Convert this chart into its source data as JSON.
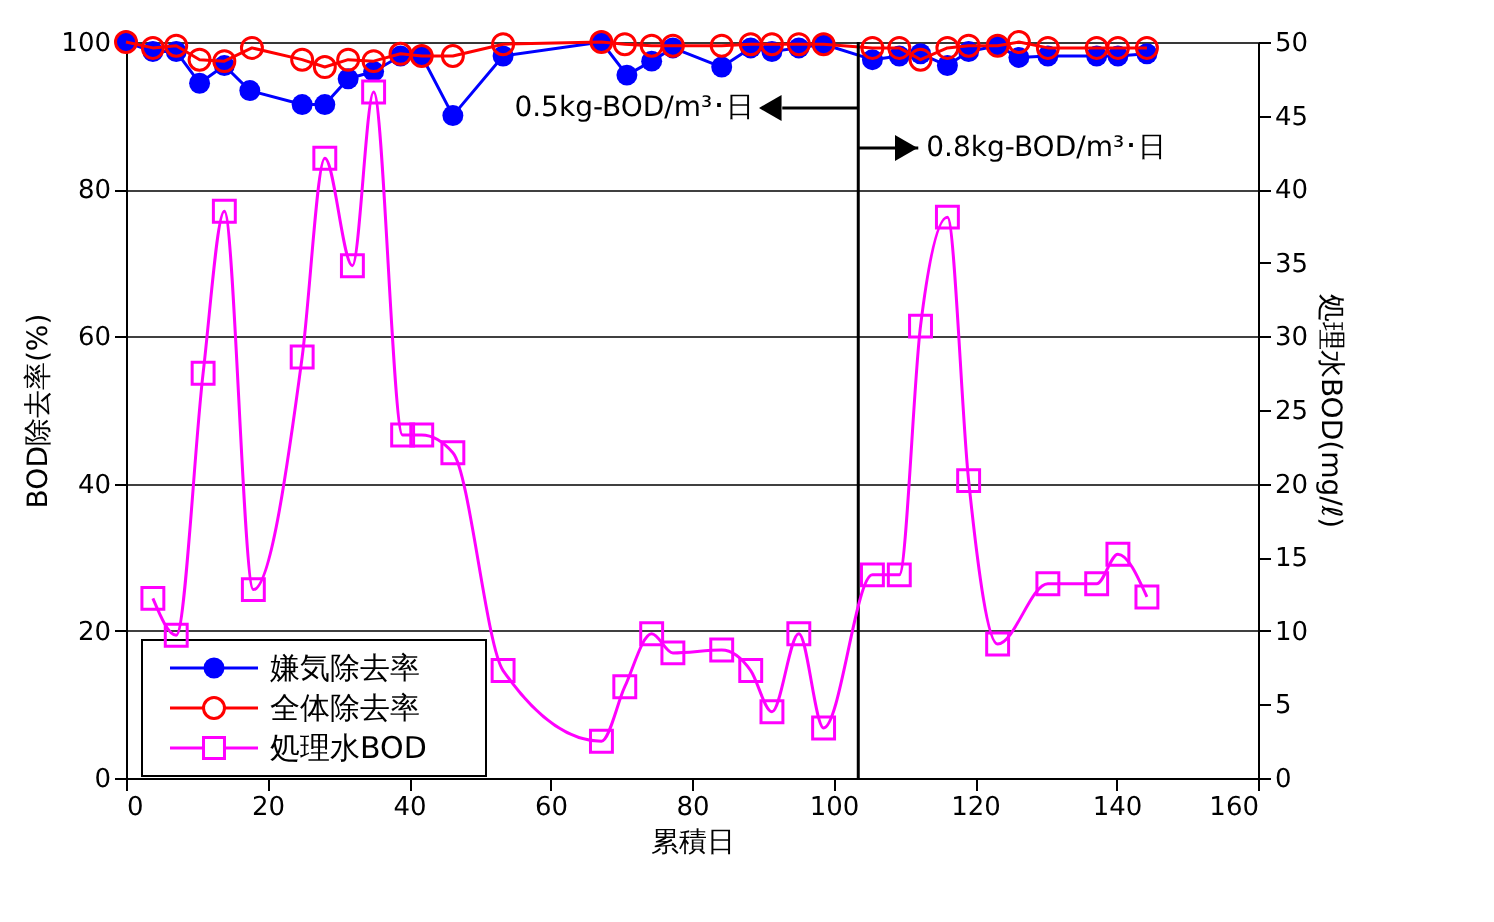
{
  "chart_data": {
    "type": "line",
    "xlabel": "累積日",
    "ylabel": "BOD除去率(%)",
    "y2label": "処理水BOD(mg/ℓ)",
    "xlim": [
      0,
      160
    ],
    "xticks": [
      0,
      20,
      40,
      60,
      80,
      100,
      120,
      140,
      160
    ],
    "ylim": [
      0,
      100
    ],
    "yticks": [
      0,
      20,
      40,
      60,
      80,
      100
    ],
    "y2lim": [
      0,
      50
    ],
    "y2ticks": [
      0,
      5,
      10,
      15,
      20,
      25,
      30,
      35,
      40,
      45,
      50
    ],
    "grid": "y",
    "legend": "bottom left",
    "line_style": "solid",
    "ref_lines": [
      {
        "axis": "x",
        "value": 103.5,
        "label": null,
        "color": "#000000"
      }
    ],
    "annotations": [
      "0.5kg-BOD/m³･日",
      "0.8kg-BOD/m³･日"
    ],
    "series": [
      {
        "name": "嫌気除去率",
        "color": "#0000ff",
        "marker": "circle",
        "x": [
          0,
          3.8,
          7.1,
          10.4,
          13.9,
          17.5,
          24.9,
          28.1,
          31.4,
          35,
          38.8,
          41.8,
          46.2,
          53.3,
          67.2,
          70.8,
          74.3,
          77.3,
          84.2,
          88.3,
          91.3,
          95.1,
          98.6,
          105.5,
          109.3,
          112.3,
          116.1,
          119.1,
          123.2,
          126.2,
          130.3,
          137.2,
          140.2,
          144.3
        ],
        "values": [
          100,
          98.7,
          98.7,
          94.4,
          96.8,
          93.4,
          91.5,
          91.5,
          95,
          96,
          98.1,
          98.1,
          90,
          98.1,
          100,
          95.5,
          97.4,
          99.2,
          96.6,
          99.2,
          98.7,
          99.2,
          99.7,
          97.6,
          98.1,
          98.4,
          96.8,
          98.7,
          99.5,
          97.9,
          98.1,
          98.1,
          98.1,
          98.4
        ]
      },
      {
        "name": "全体除去率",
        "color": "#ff0000",
        "marker": "circle",
        "x": [
          0,
          3.8,
          7.1,
          10.4,
          13.9,
          17.8,
          24.9,
          28.1,
          31.4,
          35,
          38.8,
          41.8,
          46.2,
          53.3,
          67.2,
          70.5,
          74.3,
          77.3,
          84.2,
          88.3,
          91.3,
          95.1,
          98.6,
          105.5,
          109.3,
          112.3,
          116.1,
          119.1,
          123.2,
          126.2,
          130.3,
          137.2,
          140.2,
          144.3
        ],
        "values": [
          100,
          99.2,
          99.5,
          97.6,
          97.4,
          99.2,
          97.6,
          96.6,
          97.6,
          97.4,
          98.4,
          98.1,
          98.1,
          99.7,
          100,
          99.7,
          99.5,
          99.5,
          99.5,
          99.7,
          99.7,
          99.7,
          99.7,
          99.2,
          99.2,
          97.6,
          99.2,
          99.5,
          99.5,
          100,
          99.2,
          99.2,
          99.2,
          99.2
        ]
      },
      {
        "name": "処理水BOD",
        "color": "#ff00ff",
        "marker": "square",
        "axis": "y2",
        "x": [
          3.8,
          7.1,
          10.9,
          13.9,
          18,
          24.9,
          28.1,
          32,
          35,
          39.1,
          41.8,
          46.2,
          53.3,
          67.2,
          70.5,
          74.3,
          77.3,
          84.2,
          88.3,
          91.3,
          95.1,
          98.6,
          105.5,
          109.3,
          112.3,
          116.1,
          119.1,
          123.2,
          130.3,
          137.2,
          140.2,
          144.3
        ],
        "values": [
          12.2,
          9.7,
          27.5,
          38.5,
          12.8,
          28.6,
          42.1,
          34.8,
          46.6,
          23.3,
          23.3,
          22.1,
          7.3,
          2.5,
          6.2,
          9.8,
          8.5,
          8.7,
          7.3,
          4.5,
          9.8,
          3.4,
          13.8,
          13.8,
          30.7,
          38.1,
          20.2,
          9.1,
          13.2,
          13.2,
          15.2,
          12.3
        ]
      }
    ]
  }
}
